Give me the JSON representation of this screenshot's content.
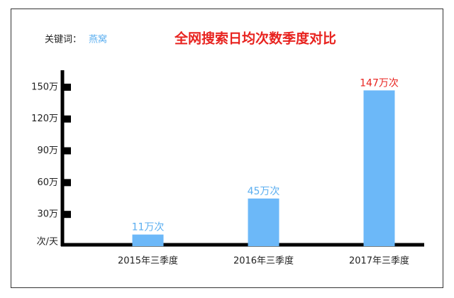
{
  "chart_data": {
    "type": "bar",
    "keyword_label": "关键词：",
    "keyword": "燕窝",
    "title": "全网搜索日均次数季度对比",
    "categories": [
      "2015年三季度",
      "2016年三季度",
      "2017年三季度"
    ],
    "values": [
      11,
      45,
      147
    ],
    "value_labels": [
      "11万次",
      "45万次",
      "147万次"
    ],
    "value_label_colors": [
      "#5aaef0",
      "#5aaef0",
      "#e8231f"
    ],
    "color": "#6cb8f8",
    "ylim": [
      0,
      165
    ],
    "yticks": [
      {
        "value": 0,
        "label": "次/天"
      },
      {
        "value": 30,
        "label": "30万"
      },
      {
        "value": 60,
        "label": "60万"
      },
      {
        "value": 90,
        "label": "90万"
      },
      {
        "value": 120,
        "label": "120万"
      },
      {
        "value": 150,
        "label": "150万"
      }
    ]
  }
}
